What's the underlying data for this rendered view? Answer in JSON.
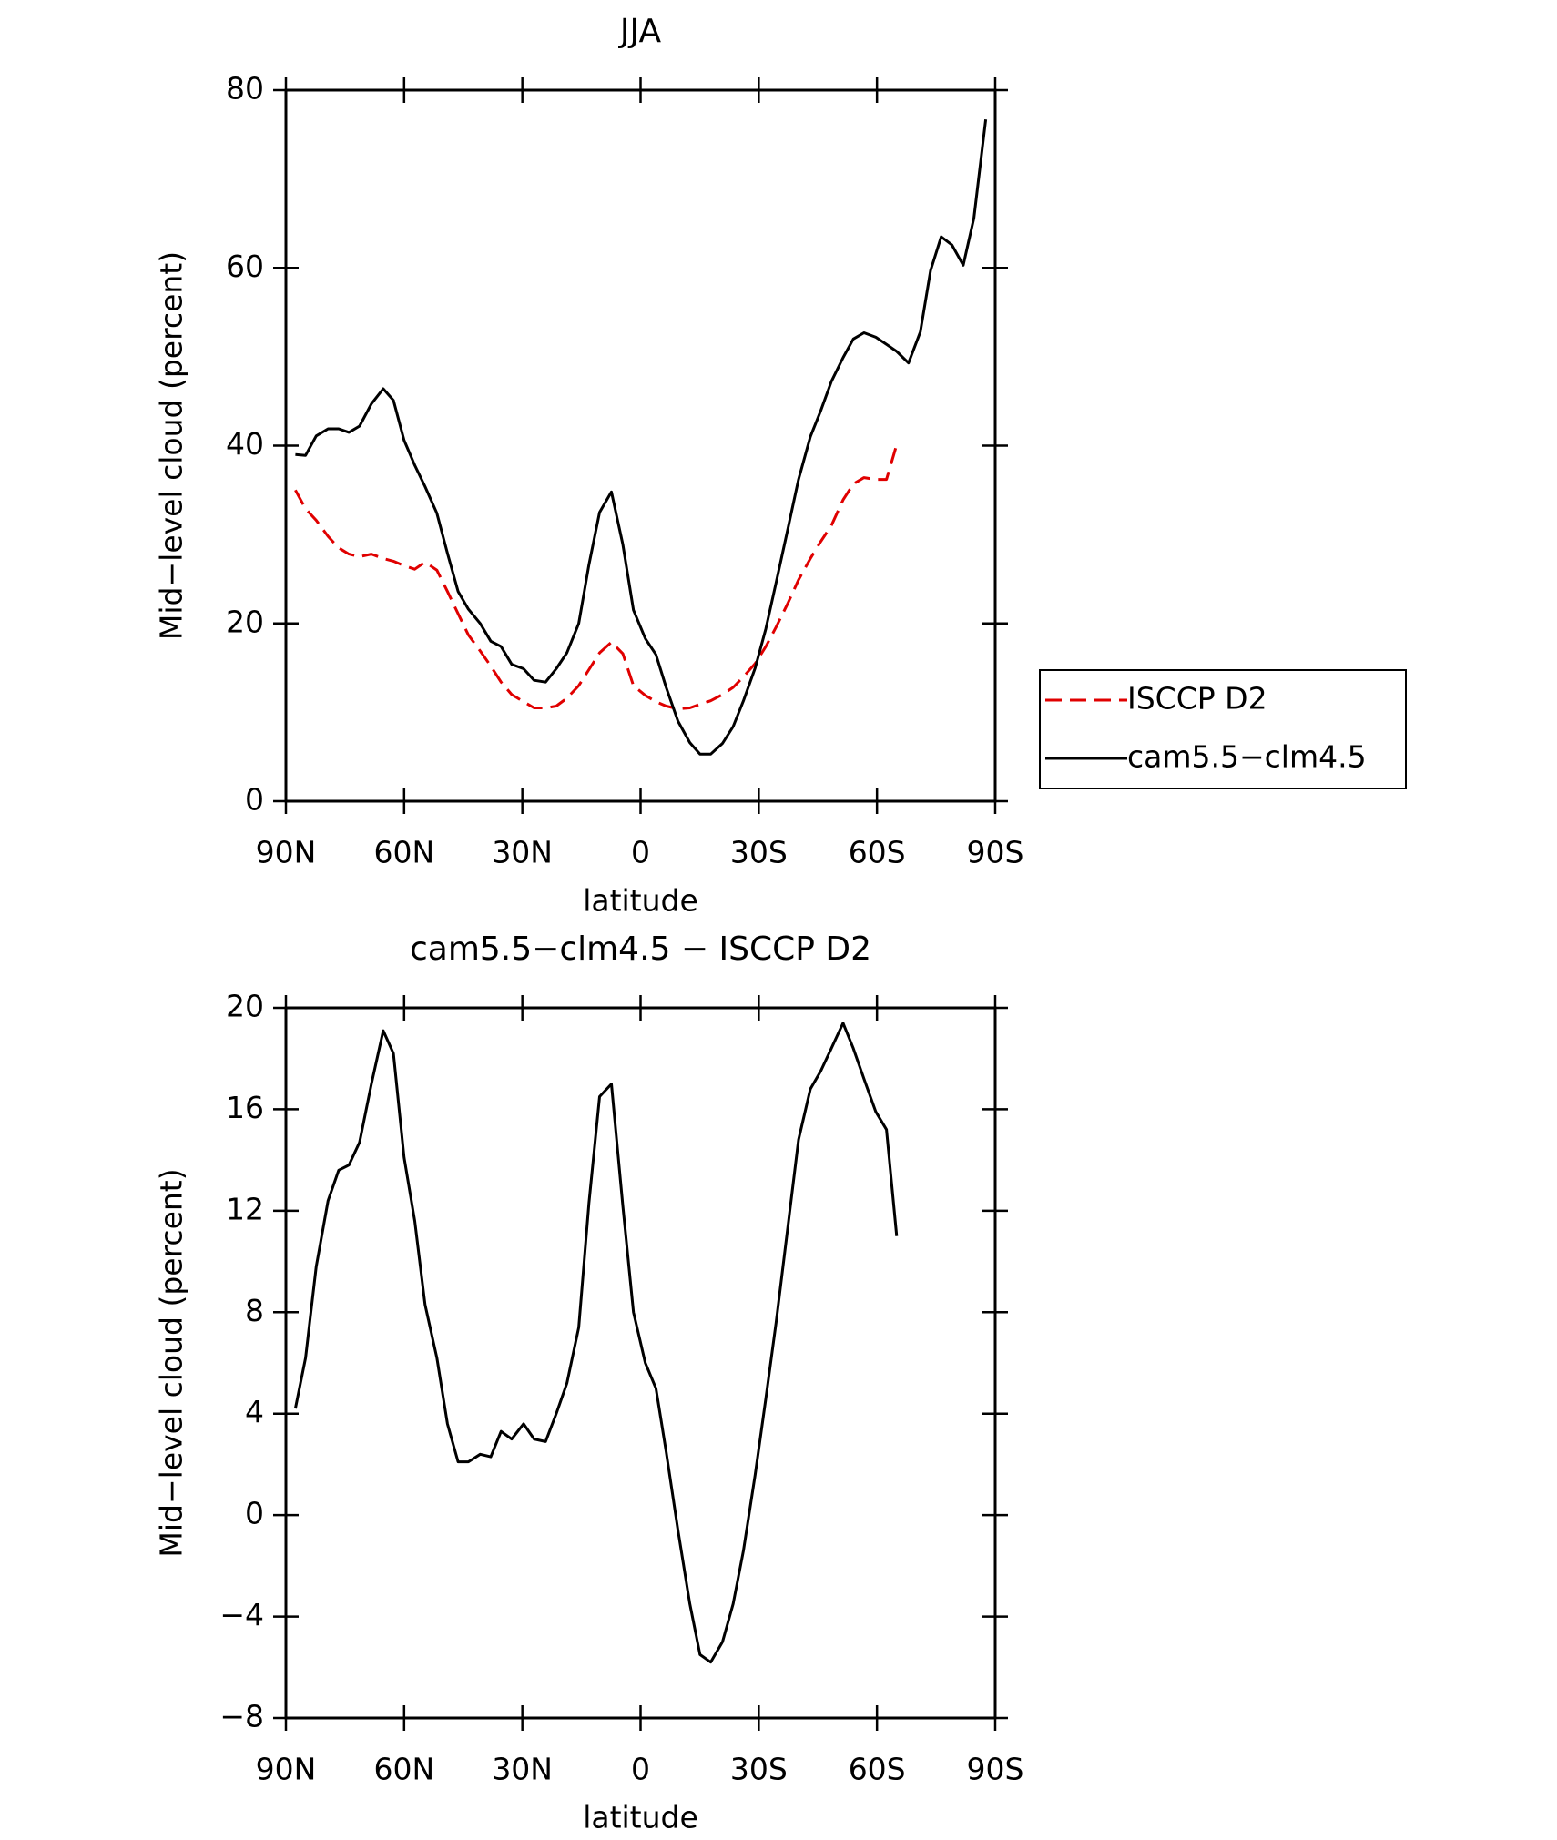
{
  "chart_data": [
    {
      "type": "line",
      "title": "JJA",
      "xlabel": "latitude",
      "ylabel": "Mid−level cloud (percent)",
      "x": [
        87.6,
        85,
        82.3,
        79.3,
        76.6,
        74,
        71.3,
        68.3,
        65.3,
        62.7,
        60,
        57.3,
        54.7,
        51.7,
        49,
        46.3,
        43.7,
        40.7,
        38,
        35.4,
        32.7,
        29.7,
        27,
        24.1,
        21.4,
        18.7,
        15.7,
        13.1,
        10.4,
        7.4,
        4.5,
        1.8,
        -1.2,
        -3.9,
        -6.5,
        -9.5,
        -12.5,
        -15.1,
        -17.8,
        -20.8,
        -23.5,
        -26.1,
        -29.1,
        -31.8,
        -34.4,
        -37.4,
        -40.1,
        -43.1,
        -45.7,
        -48.4,
        -51.4,
        -54,
        -56.7,
        -59.7,
        -62.4,
        -65,
        -68,
        -71,
        -73.6,
        -76.3,
        -79,
        -81.9,
        -84.6,
        -87.6
      ],
      "xlim": [
        90,
        -90
      ],
      "xticks": [
        {
          "value": 90,
          "label": "90N"
        },
        {
          "value": 60,
          "label": "60N"
        },
        {
          "value": 30,
          "label": "30N"
        },
        0,
        {
          "value": -30,
          "label": "30S"
        },
        {
          "value": -60,
          "label": "60S"
        },
        {
          "value": -90,
          "label": "90S"
        }
      ],
      "ylim": [
        0,
        80
      ],
      "yticks": [
        0,
        20,
        40,
        60,
        80
      ],
      "legend": "outside-right",
      "series": [
        {
          "name": "ISCCP D2",
          "color": "#e00000",
          "dashed": true,
          "values": [
            35.0,
            32.9,
            31.6,
            29.8,
            28.5,
            27.8,
            27.5,
            27.8,
            27.3,
            27.0,
            26.5,
            26.1,
            26.9,
            26.0,
            23.6,
            21.1,
            18.7,
            16.9,
            15.2,
            13.4,
            12.0,
            11.2,
            10.5,
            10.5,
            10.7,
            11.6,
            13.0,
            14.8,
            16.7,
            17.9,
            16.6,
            13.0,
            11.9,
            11.2,
            10.7,
            10.4,
            10.5,
            10.9,
            11.3,
            12.0,
            12.8,
            14.0,
            15.5,
            17.4,
            19.6,
            22.3,
            24.9,
            27.3,
            29.2,
            31.0,
            33.9,
            35.7,
            36.4,
            36.2,
            36.2,
            40.1,
            null,
            null,
            null,
            null,
            null,
            null,
            null,
            null
          ]
        },
        {
          "name": "cam5.5−clm4.5",
          "color": "#000000",
          "dashed": false,
          "values": [
            39.0,
            38.9,
            41.1,
            41.9,
            41.9,
            41.5,
            42.2,
            44.7,
            46.4,
            45.1,
            40.6,
            37.8,
            35.4,
            32.4,
            27.9,
            23.6,
            21.6,
            20.0,
            18.0,
            17.4,
            15.4,
            14.9,
            13.6,
            13.4,
            14.9,
            16.7,
            20.0,
            26.6,
            32.5,
            34.8,
            28.9,
            21.5,
            18.3,
            16.5,
            12.8,
            9.0,
            6.6,
            5.3,
            5.3,
            6.5,
            8.4,
            11.3,
            15.0,
            19.4,
            24.6,
            30.7,
            36.2,
            41.0,
            43.9,
            47.2,
            49.9,
            52.0,
            52.7,
            52.2,
            51.4,
            50.6,
            49.3,
            52.8,
            59.7,
            63.5,
            62.6,
            60.3,
            65.6,
            76.7
          ]
        }
      ]
    },
    {
      "type": "line",
      "title": "cam5.5−clm4.5 − ISCCP D2",
      "xlabel": "latitude",
      "ylabel": "Mid−level cloud (percent)",
      "x": [
        87.6,
        85,
        82.3,
        79.3,
        76.6,
        74,
        71.3,
        68.3,
        65.3,
        62.7,
        60,
        57.3,
        54.7,
        51.7,
        49,
        46.3,
        43.7,
        40.7,
        38,
        35.4,
        32.7,
        29.7,
        27,
        24.1,
        21.4,
        18.7,
        15.7,
        13.1,
        10.4,
        7.4,
        4.5,
        1.8,
        -1.2,
        -3.9,
        -6.5,
        -9.5,
        -12.5,
        -15.1,
        -17.8,
        -20.8,
        -23.5,
        -26.1,
        -29.1,
        -31.8,
        -34.4,
        -37.4,
        -40.1,
        -43.1,
        -45.7,
        -48.4,
        -51.4,
        -54,
        -56.7,
        -59.7,
        -62.4,
        -65
      ],
      "xlim": [
        90,
        -90
      ],
      "xticks": [
        {
          "value": 90,
          "label": "90N"
        },
        {
          "value": 60,
          "label": "60N"
        },
        {
          "value": 30,
          "label": "30N"
        },
        0,
        {
          "value": -30,
          "label": "30S"
        },
        {
          "value": -60,
          "label": "60S"
        },
        {
          "value": -90,
          "label": "90S"
        }
      ],
      "ylim": [
        -8,
        20
      ],
      "yticks": [
        {
          "value": -8,
          "label": "−8"
        },
        {
          "value": -4,
          "label": "−4"
        },
        0,
        4,
        8,
        12,
        16,
        20
      ],
      "series": [
        {
          "color": "#000000",
          "dashed": false,
          "values": [
            4.2,
            6.2,
            9.8,
            12.4,
            13.6,
            13.8,
            14.7,
            17.0,
            19.1,
            18.2,
            14.1,
            11.6,
            8.3,
            6.2,
            3.6,
            2.1,
            2.1,
            2.4,
            2.3,
            3.3,
            3.0,
            3.6,
            3.0,
            2.9,
            4.0,
            5.2,
            7.4,
            12.3,
            16.5,
            17.0,
            12.2,
            8.0,
            6.0,
            5.0,
            2.5,
            -0.6,
            -3.5,
            -5.5,
            -5.8,
            -5.0,
            -3.5,
            -1.4,
            1.6,
            4.6,
            7.6,
            11.4,
            14.8,
            16.8,
            17.5,
            18.4,
            19.4,
            18.4,
            17.2,
            15.9,
            15.2,
            11.0
          ]
        }
      ]
    }
  ]
}
